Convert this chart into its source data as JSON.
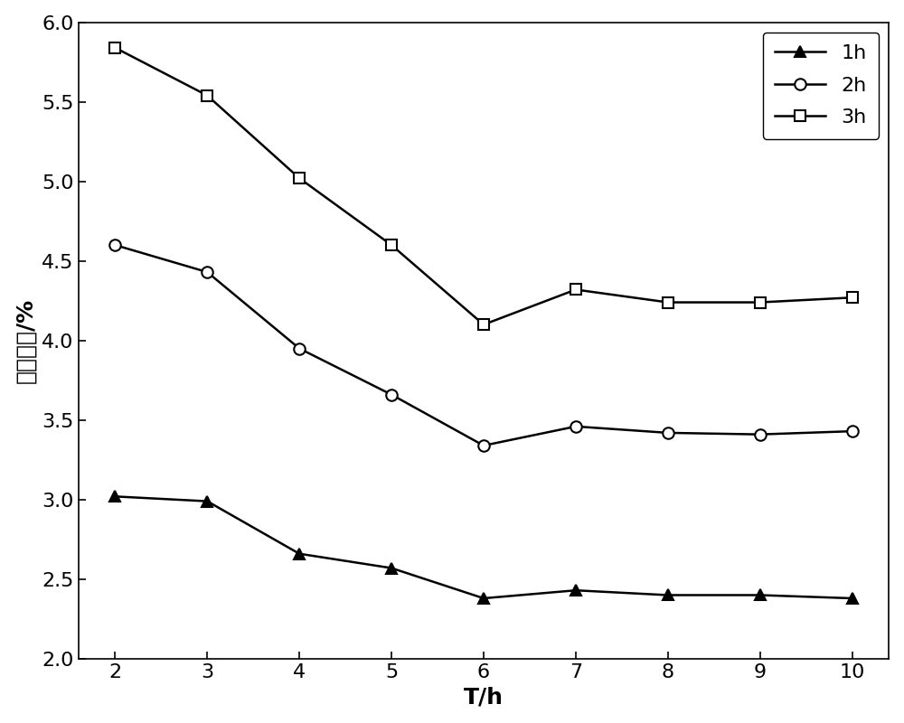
{
  "x": [
    2,
    3,
    4,
    5,
    6,
    7,
    8,
    9,
    10
  ],
  "series_1h": [
    3.02,
    2.99,
    2.66,
    2.57,
    2.38,
    2.43,
    2.4,
    2.4,
    2.38
  ],
  "series_2h": [
    4.6,
    4.43,
    3.95,
    3.66,
    3.34,
    3.46,
    3.42,
    3.41,
    3.43
  ],
  "series_3h": [
    5.84,
    5.54,
    5.02,
    4.6,
    4.1,
    4.32,
    4.24,
    4.24,
    4.27
  ],
  "xlabel": "T/h",
  "ylabel": "平均误差/%",
  "legend_labels": [
    "1h",
    "2h",
    "3h"
  ],
  "ylim": [
    2.0,
    6.0
  ],
  "xlim": [
    2,
    10
  ],
  "yticks": [
    2.0,
    2.5,
    3.0,
    3.5,
    4.0,
    4.5,
    5.0,
    5.5,
    6.0
  ],
  "xticks": [
    2,
    3,
    4,
    5,
    6,
    7,
    8,
    9,
    10
  ],
  "line_color": "#000000",
  "linewidth": 1.8,
  "markersize": 9,
  "label_fontsize": 18,
  "tick_fontsize": 16,
  "legend_fontsize": 16,
  "figure_bg": "#ffffff",
  "figwidth": 10.0,
  "figheight": 8.0,
  "dpi": 100
}
